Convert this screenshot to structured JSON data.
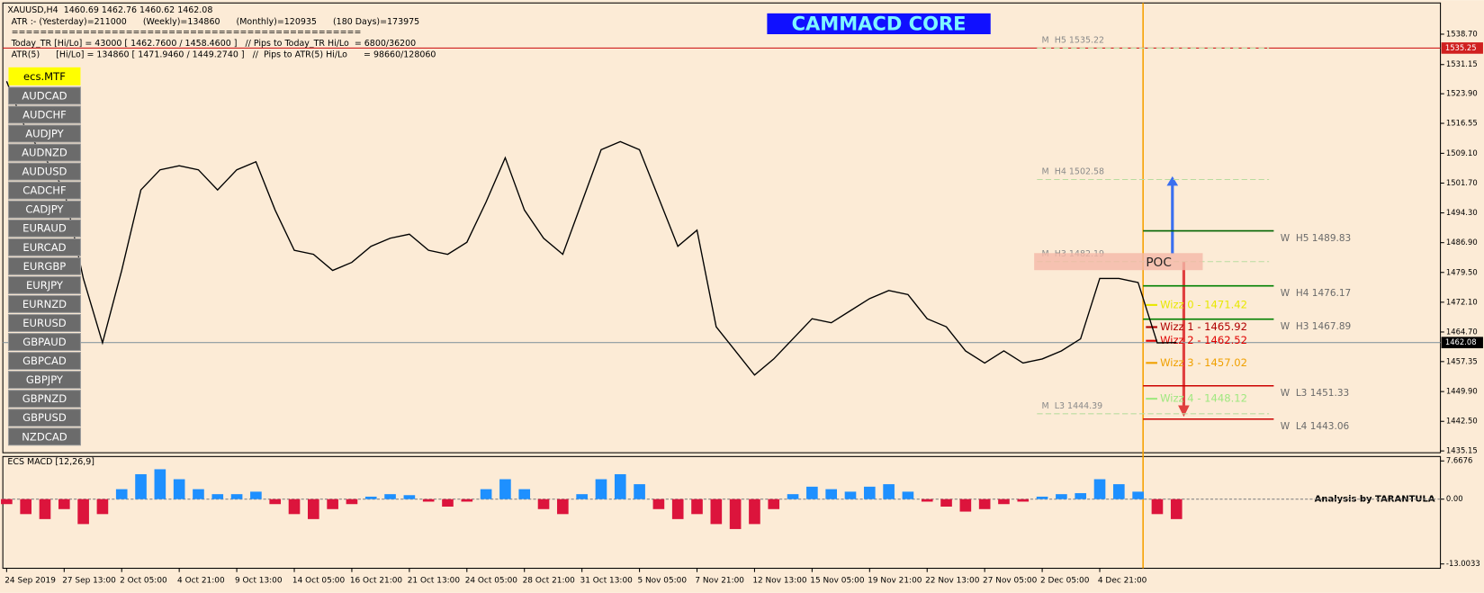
{
  "header": {
    "symbol_line": "XAUUSD,H4  1460.69 1462.76 1460.62 1462.08",
    "atr_line": "ATR :- (Yesterday)=211000      (Weekly)=134860      (Monthly)=120935      (180 Days)=173975",
    "separator": "=================================================",
    "today_line": "Today_TR [Hi/Lo] = 43000 [ 1462.7600 / 1458.4600 ]   // Pips to Today_TR Hi/Lo  = 6800/36200",
    "atr5_line": "ATR(5)      [Hi/Lo] = 134860 [ 1471.9460 / 1449.2740 ]   //  Pips to ATR(5) Hi/Lo      = 98660/128060"
  },
  "banner": "CAMMACD CORE",
  "symbols": {
    "active": "ecs.MTF",
    "list": [
      "AUDCAD",
      "AUDCHF",
      "AUDJPY",
      "AUDNZD",
      "AUDUSD",
      "CADCHF",
      "CADJPY",
      "EURAUD",
      "EURCAD",
      "EURGBP",
      "EURJPY",
      "EURNZD",
      "EURUSD",
      "GBPAUD",
      "GBPCAD",
      "GBPJPY",
      "GBPNZD",
      "GBPUSD",
      "NZDCAD"
    ]
  },
  "chart_data": [
    {
      "type": "line",
      "categories": [
        "24 Sep 2019",
        null,
        null,
        "27 Sep 13:00",
        null,
        null,
        "2 Oct 05:00",
        null,
        null,
        "4 Oct 21:00",
        null,
        null,
        "9 Oct 13:00",
        null,
        null,
        "14 Oct 05:00",
        null,
        null,
        "16 Oct 21:00",
        null,
        null,
        "21 Oct 13:00",
        null,
        null,
        "24 Oct 05:00",
        null,
        null,
        "28 Oct 21:00",
        null,
        null,
        "31 Oct 13:00",
        null,
        null,
        "5 Nov 05:00",
        null,
        null,
        "7 Nov 21:00",
        null,
        null,
        "12 Nov 13:00",
        null,
        null,
        "15 Nov 05:00",
        null,
        null,
        "19 Nov 21:00",
        null,
        null,
        "22 Nov 13:00",
        null,
        null,
        "27 Nov 05:00",
        null,
        null,
        "2 Dec 05:00",
        null,
        null,
        "4 Dec 21:00",
        null,
        null,
        null,
        null
      ],
      "series": [
        {
          "name": "XAUUSD,H4",
          "color": "#000000",
          "values": [
            1527,
            1515,
            1508,
            1500,
            1478,
            1462,
            1480,
            1500,
            1505,
            1506,
            1505,
            1500,
            1505,
            1507,
            1495,
            1485,
            1484,
            1480,
            1482,
            1486,
            1488,
            1489,
            1485,
            1484,
            1487,
            1497,
            1508,
            1495,
            1488,
            1484,
            1497,
            1510,
            1512,
            1510,
            1498,
            1486,
            1490,
            1466,
            1460,
            1454,
            1458,
            1463,
            1468,
            1467,
            1470,
            1473,
            1475,
            1474,
            1468,
            1466,
            1460,
            1457,
            1460,
            1457,
            1458,
            1460,
            1463,
            1478,
            1478,
            1477,
            1462,
            1462.08
          ]
        }
      ],
      "ylim": [
        1434.7,
        1546.46
      ],
      "yticks": [
        {
          "value": 1538.7,
          "label": "1538.70"
        },
        1531.15,
        {
          "value": 1523.9,
          "label": "1523.90"
        },
        1516.55,
        {
          "value": 1509.1,
          "label": "1509.10"
        },
        {
          "value": 1501.7,
          "label": "1501.70"
        },
        {
          "value": 1494.3,
          "label": "1494.30"
        },
        {
          "value": 1486.9,
          "label": "1486.90"
        },
        {
          "value": 1479.5,
          "label": "1479.50"
        },
        {
          "value": 1472.1,
          "label": "1472.10"
        },
        {
          "value": 1464.7,
          "label": "1464.70"
        },
        1457.35,
        {
          "value": 1449.9,
          "label": "1449.90"
        },
        {
          "value": 1442.5,
          "label": "1442.50"
        },
        1435.15
      ],
      "price_line": 1535.25,
      "last_price": 1462.08,
      "monthly_levels": [
        {
          "label": "M  H5 1535.22",
          "value": 1535.22,
          "color": "#b9dca0"
        },
        {
          "label": "M  H4 1502.58",
          "value": 1502.58,
          "color": "#b9dca0"
        },
        {
          "label": "M  H3 1482.19",
          "value": 1482.19,
          "color": "#b9dca0"
        },
        {
          "label": "M  L3 1444.39",
          "value": 1444.39,
          "color": "#b9dca0"
        }
      ],
      "weekly_levels": [
        {
          "label": "W  H5 1489.83",
          "value": 1489.83,
          "color": "#006400"
        },
        {
          "label": "W  H4 1476.17",
          "value": 1476.17,
          "color": "#008000"
        },
        {
          "label": "W  H3 1467.89",
          "value": 1467.89,
          "color": "#008000"
        },
        {
          "label": "W  L3 1451.33",
          "value": 1451.33,
          "color": "#cc0000"
        },
        {
          "label": "W  L4 1443.06",
          "value": 1443.06,
          "color": "#cc0000"
        }
      ],
      "wizz_levels": [
        {
          "label": "Wizz 0 - 1471.42",
          "value": 1471.42,
          "color": "#e8e800"
        },
        {
          "label": "Wizz 1 - 1465.92",
          "value": 1465.92,
          "color": "#b00000"
        },
        {
          "label": "Wizz 2 - 1462.52",
          "value": 1462.52,
          "color": "#e00000"
        },
        {
          "label": "Wizz 3 - 1457.02",
          "value": 1457.02,
          "color": "#f0a000"
        },
        {
          "label": "Wizz 4 - 1448.12",
          "value": 1448.12,
          "color": "#a0e880"
        }
      ],
      "poc": "POC"
    },
    {
      "type": "bar",
      "title": "ECS MACD [12,26,9]",
      "annotation": "Analysis by TARANTULA",
      "positive_color": "#1e90ff",
      "negative_color": "#dc143c",
      "values": [
        -1,
        -3,
        -4,
        -2,
        -5,
        -3,
        2,
        5,
        6,
        4,
        2,
        1,
        1,
        1.5,
        -1,
        -3,
        -4,
        -2,
        -1,
        0.5,
        1,
        0.8,
        -0.5,
        -1.5,
        -0.5,
        2,
        4,
        2,
        -2,
        -3,
        1,
        4,
        5,
        3,
        -2,
        -4,
        -3,
        -5,
        -6,
        -5,
        -2,
        1,
        2.5,
        2,
        1.5,
        2.5,
        3,
        1.5,
        -0.5,
        -1.5,
        -2.5,
        -2,
        -1,
        -0.5,
        0.5,
        1,
        1.2,
        4,
        3,
        1.5,
        -3,
        -4
      ],
      "ylim": [
        -13.87,
        8.55
      ],
      "yticks": [
        7.6676,
        {
          "value": 0,
          "label": "0.00"
        },
        -13.0033
      ]
    }
  ]
}
